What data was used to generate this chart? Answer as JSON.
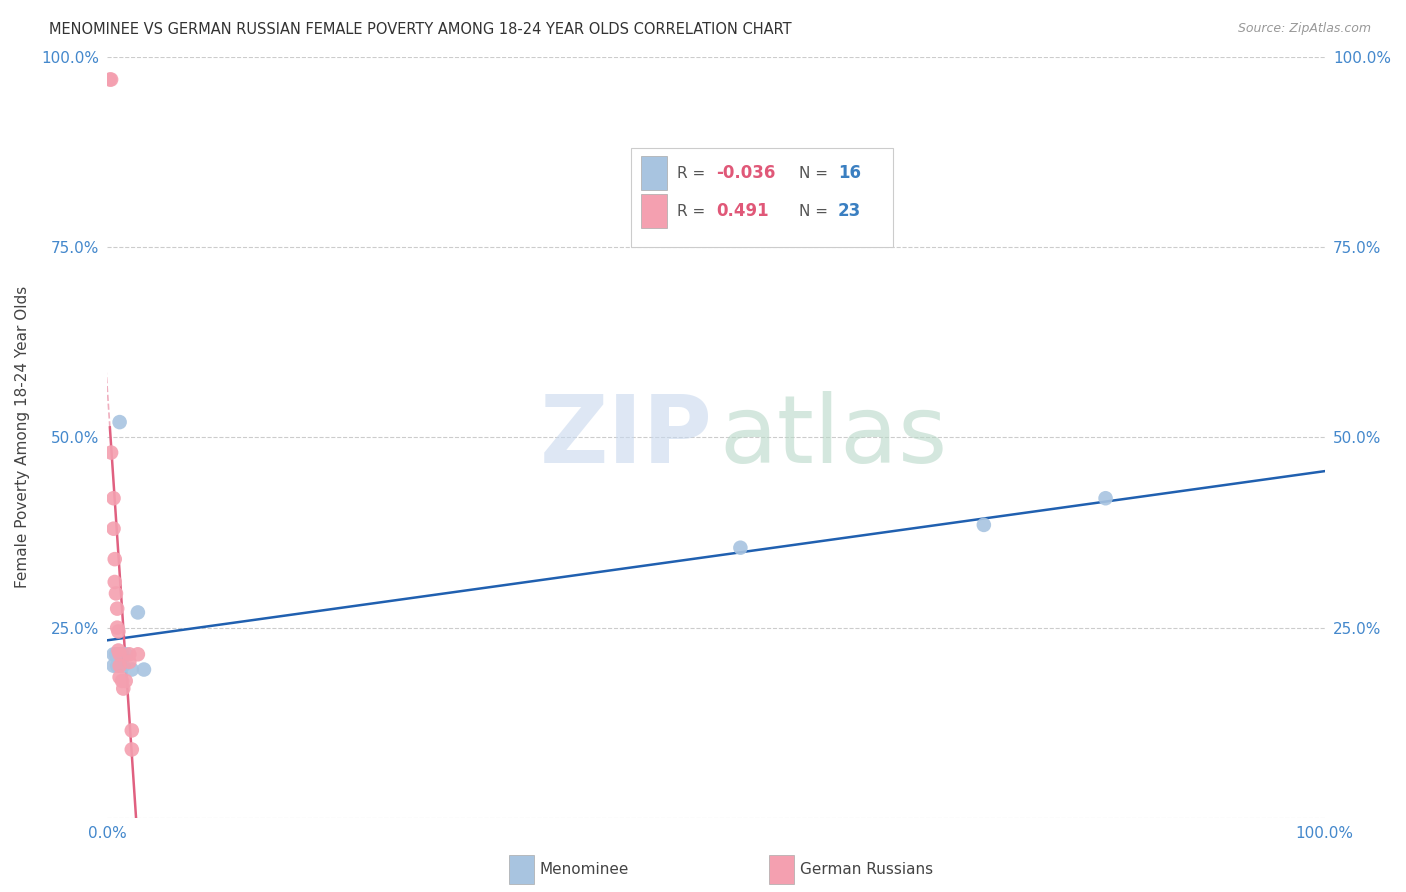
{
  "title": "MENOMINEE VS GERMAN RUSSIAN FEMALE POVERTY AMONG 18-24 YEAR OLDS CORRELATION CHART",
  "source": "Source: ZipAtlas.com",
  "ylabel": "Female Poverty Among 18-24 Year Olds",
  "xlim": [
    0,
    1
  ],
  "ylim": [
    0,
    1
  ],
  "menominee_color": "#a8c4e0",
  "german_russian_color": "#f4a0b0",
  "trendline_menominee_color": "#2060b0",
  "trendline_german_russian_color": "#e06080",
  "background_color": "#ffffff",
  "legend_R_menominee": "-0.036",
  "legend_N_menominee": "16",
  "legend_R_german": "0.491",
  "legend_N_german": "23",
  "menominee_x": [
    0.005,
    0.005,
    0.007,
    0.008,
    0.009,
    0.01,
    0.01,
    0.012,
    0.013,
    0.015,
    0.02,
    0.025,
    0.03,
    0.52,
    0.72,
    0.82
  ],
  "menominee_y": [
    0.215,
    0.2,
    0.215,
    0.2,
    0.215,
    0.52,
    0.215,
    0.215,
    0.2,
    0.215,
    0.195,
    0.27,
    0.195,
    0.355,
    0.385,
    0.42
  ],
  "german_russian_x": [
    0.002,
    0.003,
    0.003,
    0.005,
    0.005,
    0.006,
    0.006,
    0.007,
    0.008,
    0.008,
    0.009,
    0.009,
    0.01,
    0.01,
    0.01,
    0.012,
    0.013,
    0.015,
    0.018,
    0.018,
    0.02,
    0.02,
    0.025
  ],
  "german_russian_y": [
    0.97,
    0.97,
    0.48,
    0.42,
    0.38,
    0.34,
    0.31,
    0.295,
    0.275,
    0.25,
    0.245,
    0.22,
    0.215,
    0.2,
    0.185,
    0.18,
    0.17,
    0.18,
    0.215,
    0.205,
    0.115,
    0.09,
    0.215
  ]
}
